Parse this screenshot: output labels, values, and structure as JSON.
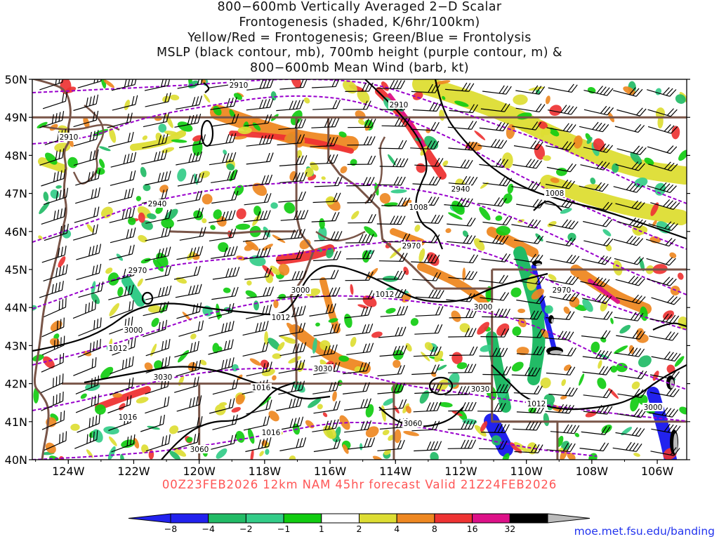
{
  "title_lines": [
    "800−600mb Vertically Averaged 2−D Scalar",
    "Frontogenesis (shaded, K/6hr/100km)",
    "Yellow/Red = Frontogenesis;  Green/Blue = Frontolysis",
    "MSLP (black contour, mb), 700mb height (purple contour, m) &",
    "800−600mb Mean Wind (barb, kt)"
  ],
  "map": {
    "lat_labels": [
      "50N",
      "49N",
      "48N",
      "47N",
      "46N",
      "45N",
      "44N",
      "43N",
      "42N",
      "41N",
      "40N"
    ],
    "lon_labels": [
      "124W",
      "122W",
      "120W",
      "118W",
      "116W",
      "114W",
      "112W",
      "110W",
      "108W",
      "106W"
    ],
    "lat_range": [
      40,
      50
    ],
    "lon_range": [
      -125.1,
      -105.1
    ],
    "colors": {
      "coast_and_borders": "#795548",
      "height_contour": "#9900cc",
      "mslp_contour": "#000000",
      "barb": "#000000"
    },
    "height_contour_labels_m": [
      "2910",
      "2910",
      "2910",
      "2940",
      "2940",
      "2970",
      "2970",
      "2970",
      "3000",
      "3000",
      "3000",
      "3000",
      "3030",
      "3030",
      "3030",
      "3060",
      "3060"
    ],
    "mslp_contour_labels_mb": [
      "1008",
      "1008",
      "1012",
      "1012",
      "1012",
      "1012",
      "1016",
      "1016",
      "1016"
    ]
  },
  "footer": {
    "valid_text": "00Z23FEB2026 12km NAM 45hr forecast Valid 21Z24FEB2026",
    "credit": "moe.met.fsu.edu/banding"
  },
  "colorbar": {
    "labels": [
      "−8",
      "−4",
      "−2",
      "−1",
      "1",
      "2",
      "4",
      "8",
      "16",
      "32"
    ],
    "colors": [
      "#2222ee",
      "#22bb66",
      "#33cc88",
      "#11cc11",
      "#ffffff",
      "#dddd33",
      "#ee8822",
      "#ee3333",
      "#dd1188",
      "#000000"
    ],
    "tail_color": "#bbbbbb"
  }
}
